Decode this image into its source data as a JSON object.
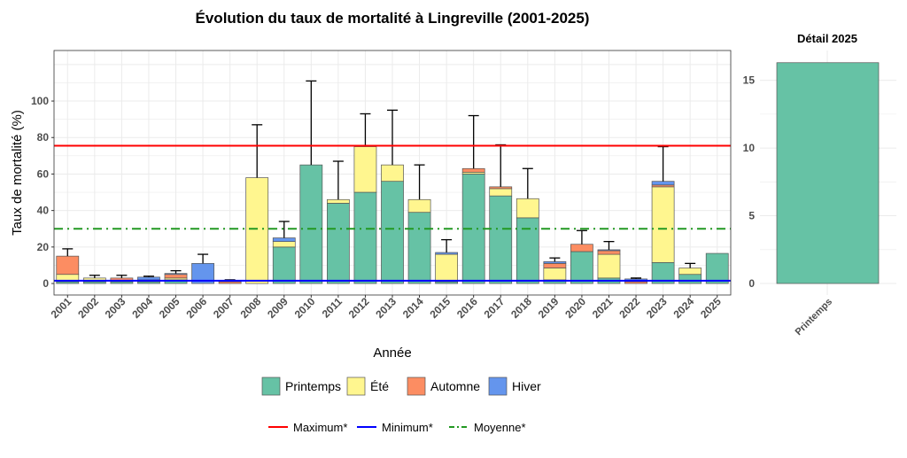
{
  "chart_data": [
    {
      "type": "bar",
      "stacked": true,
      "title": "Évolution du taux de mortalité à Lingreville (2001-2025)",
      "xlabel": "Année",
      "ylabel": "Taux de mortalité (%)",
      "ylim": [
        -6.3,
        127.7
      ],
      "yticks": [
        0,
        20,
        40,
        60,
        80,
        100
      ],
      "grid": true,
      "legend_position": "bottom",
      "categories": [
        "2001",
        "2002",
        "2003",
        "2004",
        "2005",
        "2006",
        "2007",
        "2008",
        "2009",
        "2010",
        "2011",
        "2012",
        "2013",
        "2014",
        "2015",
        "2016",
        "2017",
        "2018",
        "2019",
        "2020",
        "2021",
        "2022",
        "2023",
        "2024",
        "2025"
      ],
      "series": [
        {
          "name": "Printemps",
          "color": "#66C2A5",
          "values": [
            1,
            1,
            1,
            1,
            2,
            0,
            0,
            0,
            20,
            65,
            44,
            50,
            56,
            39,
            1,
            60,
            48,
            36,
            2,
            17.5,
            3,
            0,
            11.5,
            5,
            16.5
          ]
        },
        {
          "name": "Été",
          "color": "#FFF68F",
          "values": [
            4,
            2,
            0.5,
            0,
            1,
            0,
            0,
            58,
            3,
            0,
            2,
            25,
            9,
            7,
            15,
            1,
            4,
            10.5,
            6.5,
            0,
            13,
            0,
            41.5,
            3.5,
            0
          ]
        },
        {
          "name": "Automne",
          "color": "#FC8D62",
          "values": [
            10,
            0,
            1.5,
            1,
            2,
            0,
            1,
            0,
            0,
            0,
            0,
            0,
            0,
            0,
            0,
            2,
            1,
            0,
            2.5,
            4,
            2,
            1,
            1,
            0,
            0
          ]
        },
        {
          "name": "Hiver",
          "color": "#6495ED",
          "values": [
            0,
            0,
            0,
            1.5,
            0.5,
            11,
            0.5,
            0,
            2,
            0,
            0,
            0,
            0,
            0,
            1,
            0,
            0,
            0,
            1,
            0,
            0.5,
            1.5,
            2,
            0,
            0
          ]
        }
      ],
      "error_upper": [
        19,
        4.5,
        4.5,
        4,
        7,
        16,
        2,
        87,
        34,
        111,
        67,
        93,
        95,
        65,
        24,
        92,
        76,
        63,
        14,
        29,
        23,
        3,
        75,
        11,
        16.5
      ],
      "reference_lines": [
        {
          "name": "Maximum*",
          "value": 75.5,
          "color": "#FF0000",
          "style": "solid"
        },
        {
          "name": "Minimum*",
          "value": 1.5,
          "color": "#0000FF",
          "style": "solid"
        },
        {
          "name": "Moyenne*",
          "value": 30,
          "color": "#229922",
          "style": "dotdash"
        }
      ]
    },
    {
      "type": "bar",
      "title": "Détail 2025",
      "categories": [
        "Printemps"
      ],
      "values": [
        16.3
      ],
      "color": "#66C2A5",
      "ylim": [
        -0.85,
        17.2
      ],
      "yticks": [
        0,
        5,
        10,
        15
      ]
    }
  ]
}
